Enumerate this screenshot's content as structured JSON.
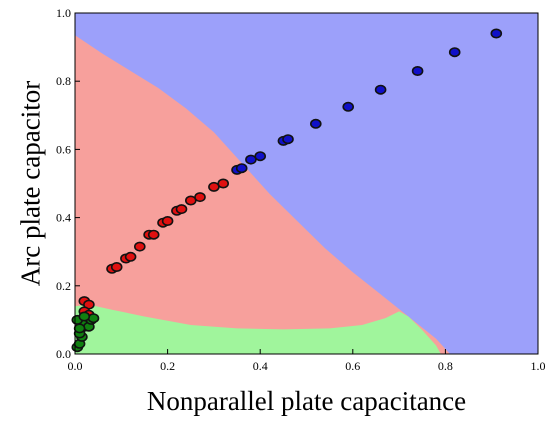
{
  "chart_data": {
    "type": "scatter",
    "xlabel": "Nonparallel plate capacitance",
    "ylabel": "Arc plate capacitor",
    "xlim": [
      0.0,
      1.0
    ],
    "ylim": [
      0.0,
      1.0
    ],
    "x_ticks": [
      "0.0",
      "0.2",
      "0.4",
      "0.6",
      "0.8",
      "1.0"
    ],
    "y_ticks": [
      "0.0",
      "0.2",
      "0.4",
      "0.6",
      "0.8",
      "1.0"
    ],
    "grid": false,
    "legend": "none",
    "regions": [
      {
        "color": "#9ca0fa",
        "boundary": [
          [
            0.0,
            1.0
          ],
          [
            1.0,
            1.0
          ],
          [
            1.0,
            0.0
          ],
          [
            0.0,
            0.0
          ]
        ]
      },
      {
        "color": "#f7a09c",
        "boundary": [
          [
            0.0,
            0.935
          ],
          [
            0.06,
            0.88
          ],
          [
            0.12,
            0.83
          ],
          [
            0.18,
            0.78
          ],
          [
            0.24,
            0.72
          ],
          [
            0.3,
            0.65
          ],
          [
            0.36,
            0.56
          ],
          [
            0.42,
            0.47
          ],
          [
            0.48,
            0.39
          ],
          [
            0.54,
            0.31
          ],
          [
            0.6,
            0.24
          ],
          [
            0.66,
            0.175
          ],
          [
            0.72,
            0.11
          ],
          [
            0.78,
            0.045
          ],
          [
            0.81,
            0.0
          ],
          [
            0.0,
            0.0
          ]
        ]
      },
      {
        "color": "#a0f59c",
        "boundary": [
          [
            0.0,
            0.0
          ],
          [
            0.0,
            0.14
          ],
          [
            0.03,
            0.145
          ],
          [
            0.08,
            0.13
          ],
          [
            0.15,
            0.11
          ],
          [
            0.25,
            0.085
          ],
          [
            0.35,
            0.075
          ],
          [
            0.45,
            0.072
          ],
          [
            0.55,
            0.075
          ],
          [
            0.62,
            0.085
          ],
          [
            0.67,
            0.105
          ],
          [
            0.7,
            0.125
          ],
          [
            0.72,
            0.11
          ],
          [
            0.75,
            0.07
          ],
          [
            0.78,
            0.025
          ],
          [
            0.79,
            0.0
          ]
        ]
      }
    ],
    "series": [
      {
        "color": "#1010c8",
        "points": [
          [
            0.35,
            0.54
          ],
          [
            0.36,
            0.545
          ],
          [
            0.38,
            0.57
          ],
          [
            0.4,
            0.58
          ],
          [
            0.45,
            0.625
          ],
          [
            0.46,
            0.63
          ],
          [
            0.52,
            0.675
          ],
          [
            0.59,
            0.725
          ],
          [
            0.66,
            0.775
          ],
          [
            0.74,
            0.83
          ],
          [
            0.82,
            0.885
          ],
          [
            0.91,
            0.94
          ]
        ]
      },
      {
        "color": "#e01010",
        "points": [
          [
            0.02,
            0.155
          ],
          [
            0.03,
            0.145
          ],
          [
            0.02,
            0.125
          ],
          [
            0.03,
            0.115
          ],
          [
            0.08,
            0.25
          ],
          [
            0.09,
            0.255
          ],
          [
            0.11,
            0.28
          ],
          [
            0.12,
            0.285
          ],
          [
            0.14,
            0.315
          ],
          [
            0.16,
            0.35
          ],
          [
            0.17,
            0.35
          ],
          [
            0.19,
            0.385
          ],
          [
            0.2,
            0.39
          ],
          [
            0.22,
            0.42
          ],
          [
            0.23,
            0.425
          ],
          [
            0.25,
            0.45
          ],
          [
            0.27,
            0.46
          ],
          [
            0.3,
            0.49
          ],
          [
            0.32,
            0.5
          ]
        ]
      },
      {
        "color": "#108010",
        "points": [
          [
            0.005,
            0.02
          ],
          [
            0.01,
            0.03
          ],
          [
            0.015,
            0.05
          ],
          [
            0.01,
            0.06
          ],
          [
            0.02,
            0.08
          ],
          [
            0.015,
            0.09
          ],
          [
            0.03,
            0.08
          ],
          [
            0.035,
            0.1
          ],
          [
            0.04,
            0.105
          ],
          [
            0.005,
            0.1
          ],
          [
            0.02,
            0.11
          ],
          [
            0.01,
            0.075
          ]
        ]
      }
    ]
  }
}
